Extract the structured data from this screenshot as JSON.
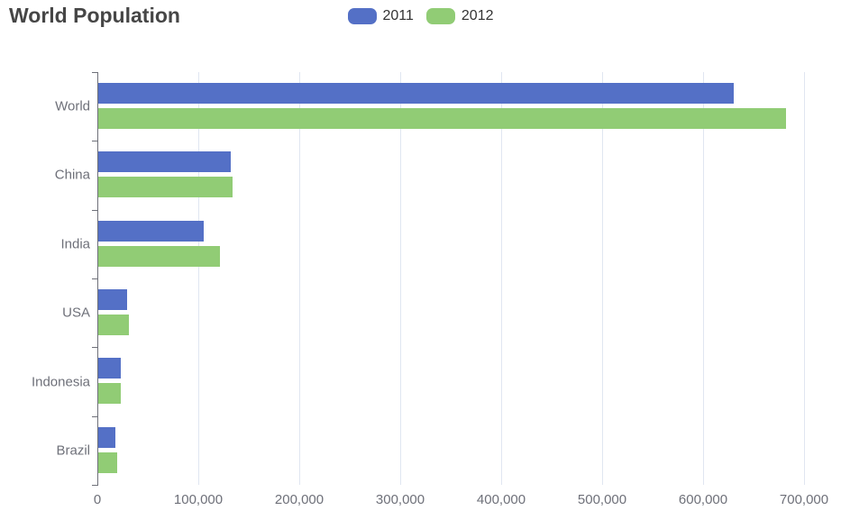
{
  "title": "World Population",
  "legend": {
    "items": [
      {
        "label": "2011",
        "color": "#5470C6"
      },
      {
        "label": "2012",
        "color": "#91CC75"
      }
    ]
  },
  "chart_data": {
    "type": "bar",
    "orientation": "horizontal",
    "title": "World Population",
    "categories": [
      "World",
      "China",
      "India",
      "USA",
      "Indonesia",
      "Brazil"
    ],
    "series": [
      {
        "name": "2011",
        "color": "#5470C6",
        "values": [
          630230,
          131744,
          104970,
          29034,
          23489,
          18203
        ]
      },
      {
        "name": "2012",
        "color": "#91CC75",
        "values": [
          681807,
          134141,
          121594,
          31000,
          23438,
          19325
        ]
      }
    ],
    "xlabel": "",
    "ylabel": "",
    "x_axis": {
      "min": 0,
      "max": 700000,
      "tick_interval": 100000,
      "tick_labels": [
        "0",
        "100,000",
        "200,000",
        "300,000",
        "400,000",
        "500,000",
        "600,000",
        "700,000"
      ]
    },
    "grid": true,
    "legend_position": "top-center",
    "colors": {
      "series_2011": "#5470C6",
      "series_2012": "#91CC75",
      "gridline": "#E0E6F1",
      "axis_line": "#6E7079",
      "axis_label": "#6E7079",
      "title_text": "#464646",
      "legend_text": "#333333",
      "background": "#FFFFFF"
    }
  }
}
